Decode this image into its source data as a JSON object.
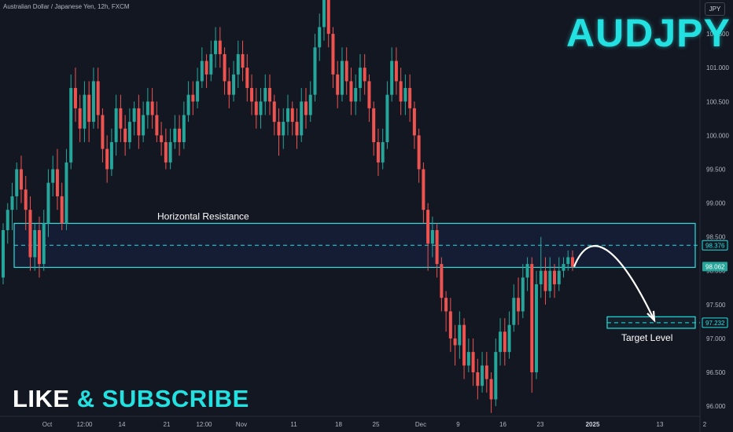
{
  "symbol_label": "Australian Dollar / Japanese Yen, 12h, FXCM",
  "title_text": "AUDJPY",
  "currency_button": "JPY",
  "banner": {
    "part1": "LIKE",
    "amp": "&",
    "part2": "SUBSCRIBE"
  },
  "colors": {
    "background": "#131722",
    "up": "#26a69a",
    "down": "#ef5350",
    "accent": "#22e1e0",
    "axis_text": "#b2b5be"
  },
  "chart_data": {
    "type": "candlestick",
    "title": "",
    "y_axis": {
      "ticks": [
        "96.000",
        "96.500",
        "97.000",
        "97.500",
        "98.000",
        "98.500",
        "99.000",
        "99.500",
        "100.000",
        "100.500",
        "101.000",
        "101.500"
      ],
      "ylim": [
        95.85,
        102.0
      ]
    },
    "x_axis": {
      "labels": [
        "Oct",
        "12:00",
        "14",
        "21",
        "12:00",
        "Nov",
        "11",
        "18",
        "25",
        "Dec",
        "9",
        "16",
        "23",
        "2025",
        "13",
        "2"
      ],
      "label_positions": [
        12,
        22,
        32,
        44,
        54,
        64,
        78,
        90,
        100,
        112,
        122,
        134,
        144,
        158,
        176,
        188
      ]
    },
    "candles": [
      [
        97.9,
        98.6,
        98.7,
        97.8
      ],
      [
        98.6,
        98.9,
        99.0,
        98.4
      ],
      [
        98.9,
        99.1,
        99.3,
        98.6
      ],
      [
        99.1,
        99.5,
        99.6,
        98.9
      ],
      [
        99.5,
        99.2,
        99.7,
        99.0
      ],
      [
        99.2,
        98.9,
        99.4,
        98.6
      ],
      [
        98.9,
        98.2,
        99.1,
        98.0
      ],
      [
        98.2,
        98.6,
        98.7,
        98.0
      ],
      [
        98.6,
        98.1,
        98.8,
        97.9
      ],
      [
        98.1,
        98.7,
        98.9,
        98.0
      ],
      [
        98.7,
        99.3,
        99.5,
        98.5
      ],
      [
        99.3,
        99.5,
        99.7,
        99.1
      ],
      [
        99.5,
        99.1,
        99.8,
        98.9
      ],
      [
        99.1,
        98.7,
        99.3,
        98.6
      ],
      [
        98.7,
        99.6,
        99.8,
        98.6
      ],
      [
        99.6,
        100.7,
        100.9,
        99.5
      ],
      [
        100.7,
        100.4,
        101.0,
        100.2
      ],
      [
        100.4,
        100.1,
        100.6,
        99.9
      ],
      [
        100.1,
        100.6,
        100.8,
        99.9
      ],
      [
        100.6,
        100.2,
        100.8,
        99.9
      ],
      [
        100.2,
        100.8,
        101.0,
        100.1
      ],
      [
        100.8,
        100.3,
        101.0,
        100.1
      ],
      [
        100.3,
        99.8,
        100.4,
        99.6
      ],
      [
        99.8,
        99.5,
        100.0,
        99.3
      ],
      [
        99.5,
        99.9,
        100.1,
        99.4
      ],
      [
        99.9,
        100.4,
        100.6,
        99.7
      ],
      [
        100.4,
        100.1,
        100.6,
        99.9
      ],
      [
        100.1,
        99.9,
        100.3,
        99.7
      ],
      [
        99.9,
        100.2,
        100.4,
        99.8
      ],
      [
        100.2,
        100.4,
        100.5,
        100.0
      ],
      [
        100.4,
        100.0,
        100.6,
        99.8
      ],
      [
        100.0,
        100.3,
        100.5,
        99.9
      ],
      [
        100.3,
        100.5,
        100.7,
        100.1
      ],
      [
        100.5,
        100.3,
        100.7,
        100.1
      ],
      [
        100.3,
        100.0,
        100.5,
        99.9
      ],
      [
        100.0,
        99.9,
        100.2,
        99.7
      ],
      [
        99.9,
        99.6,
        100.1,
        99.5
      ],
      [
        99.6,
        99.9,
        100.1,
        99.5
      ],
      [
        99.9,
        100.1,
        100.3,
        99.8
      ],
      [
        100.1,
        99.9,
        100.3,
        99.7
      ],
      [
        99.9,
        100.3,
        100.5,
        99.8
      ],
      [
        100.3,
        100.6,
        100.8,
        100.2
      ],
      [
        100.6,
        100.5,
        100.8,
        100.3
      ],
      [
        100.5,
        100.8,
        101.0,
        100.4
      ],
      [
        100.8,
        101.1,
        101.3,
        100.7
      ],
      [
        101.1,
        100.9,
        101.2,
        100.7
      ],
      [
        100.9,
        101.2,
        101.4,
        100.8
      ],
      [
        101.2,
        101.4,
        101.6,
        101.0
      ],
      [
        101.4,
        101.2,
        101.6,
        101.0
      ],
      [
        101.2,
        100.8,
        101.3,
        100.6
      ],
      [
        100.8,
        100.6,
        101.0,
        100.4
      ],
      [
        100.6,
        100.9,
        101.1,
        100.5
      ],
      [
        100.9,
        101.2,
        101.4,
        100.7
      ],
      [
        101.2,
        101.0,
        101.4,
        100.8
      ],
      [
        101.0,
        100.7,
        101.2,
        100.5
      ],
      [
        100.7,
        100.5,
        100.9,
        100.3
      ],
      [
        100.5,
        100.3,
        100.7,
        100.1
      ],
      [
        100.3,
        100.5,
        100.7,
        100.1
      ],
      [
        100.5,
        100.7,
        100.9,
        100.3
      ],
      [
        100.7,
        100.5,
        100.9,
        100.3
      ],
      [
        100.5,
        100.2,
        100.6,
        100.0
      ],
      [
        100.2,
        100.0,
        100.4,
        99.7
      ],
      [
        100.0,
        100.2,
        100.4,
        99.8
      ],
      [
        100.2,
        100.4,
        100.6,
        100.0
      ],
      [
        100.4,
        100.2,
        100.5,
        100.0
      ],
      [
        100.2,
        100.0,
        100.4,
        99.8
      ],
      [
        100.0,
        100.5,
        100.7,
        99.9
      ],
      [
        100.5,
        100.3,
        100.7,
        100.1
      ],
      [
        100.3,
        100.6,
        100.8,
        100.2
      ],
      [
        100.6,
        101.3,
        101.5,
        100.5
      ],
      [
        101.3,
        101.6,
        101.8,
        101.1
      ],
      [
        101.6,
        102.0,
        102.1,
        101.4
      ],
      [
        102.0,
        101.5,
        102.2,
        101.3
      ],
      [
        101.5,
        100.9,
        101.6,
        100.7
      ],
      [
        100.9,
        100.6,
        101.1,
        100.4
      ],
      [
        100.6,
        101.1,
        101.3,
        100.5
      ],
      [
        101.1,
        100.8,
        101.3,
        100.6
      ],
      [
        100.8,
        100.5,
        101.0,
        100.3
      ],
      [
        100.5,
        100.7,
        100.9,
        100.3
      ],
      [
        100.7,
        101.0,
        101.2,
        100.5
      ],
      [
        101.0,
        100.8,
        101.2,
        100.6
      ],
      [
        100.8,
        100.4,
        100.9,
        100.2
      ],
      [
        100.4,
        99.9,
        100.5,
        99.7
      ],
      [
        99.9,
        99.6,
        100.1,
        99.4
      ],
      [
        99.6,
        99.9,
        100.1,
        99.5
      ],
      [
        99.9,
        100.6,
        100.8,
        99.8
      ],
      [
        100.6,
        101.1,
        101.3,
        100.5
      ],
      [
        101.1,
        100.8,
        101.3,
        100.6
      ],
      [
        100.8,
        100.5,
        101.0,
        100.3
      ],
      [
        100.5,
        100.7,
        100.9,
        100.3
      ],
      [
        100.7,
        100.4,
        100.9,
        100.2
      ],
      [
        100.4,
        100.0,
        100.5,
        99.8
      ],
      [
        100.0,
        99.5,
        100.1,
        99.3
      ],
      [
        99.5,
        98.9,
        99.6,
        98.7
      ],
      [
        98.9,
        98.4,
        99.0,
        98.0
      ],
      [
        98.4,
        98.6,
        98.8,
        98.2
      ],
      [
        98.6,
        98.1,
        98.7,
        97.9
      ],
      [
        98.1,
        97.6,
        98.2,
        97.4
      ],
      [
        97.6,
        97.4,
        97.7,
        97.1
      ],
      [
        97.4,
        97.0,
        97.6,
        96.8
      ],
      [
        97.0,
        96.9,
        97.2,
        96.6
      ],
      [
        96.9,
        97.2,
        97.4,
        96.7
      ],
      [
        97.2,
        96.6,
        97.3,
        96.4
      ],
      [
        96.6,
        96.8,
        97.0,
        96.5
      ],
      [
        96.8,
        96.5,
        97.0,
        96.3
      ],
      [
        96.5,
        96.3,
        96.7,
        96.1
      ],
      [
        96.3,
        96.6,
        96.8,
        96.2
      ],
      [
        96.6,
        96.4,
        96.8,
        96.2
      ],
      [
        96.4,
        96.1,
        96.5,
        95.9
      ],
      [
        96.1,
        96.8,
        97.0,
        96.0
      ],
      [
        96.8,
        97.1,
        97.3,
        96.6
      ],
      [
        97.1,
        96.8,
        97.3,
        96.6
      ],
      [
        96.8,
        97.2,
        97.4,
        96.7
      ],
      [
        97.2,
        97.6,
        97.8,
        97.1
      ],
      [
        97.6,
        97.4,
        97.9,
        97.2
      ],
      [
        97.4,
        97.9,
        98.1,
        97.3
      ],
      [
        97.9,
        98.1,
        98.2,
        97.7
      ],
      [
        98.1,
        96.5,
        98.2,
        96.2
      ],
      [
        96.5,
        97.8,
        98.0,
        96.4
      ],
      [
        97.8,
        98.0,
        98.5,
        97.6
      ],
      [
        98.0,
        97.7,
        98.2,
        97.5
      ],
      [
        97.7,
        98.0,
        98.2,
        97.6
      ],
      [
        98.0,
        97.8,
        98.1,
        97.6
      ],
      [
        97.8,
        98.0,
        98.2,
        97.7
      ],
      [
        98.0,
        98.1,
        98.2,
        97.9
      ],
      [
        98.1,
        98.2,
        98.3,
        98.0
      ],
      [
        98.2,
        98.06,
        98.3,
        98.0
      ]
    ],
    "current_price": "98.062",
    "annotations": [
      {
        "text": "Horizontal Resistance",
        "zone_top": 98.7,
        "zone_bottom": 98.05,
        "level": 98.376,
        "level_label": "98.376"
      },
      {
        "text": "Target Level",
        "zone_top": 97.32,
        "zone_bottom": 97.15,
        "level": 97.232,
        "level_label": "97.232"
      }
    ],
    "grid": false,
    "legend": "none"
  }
}
